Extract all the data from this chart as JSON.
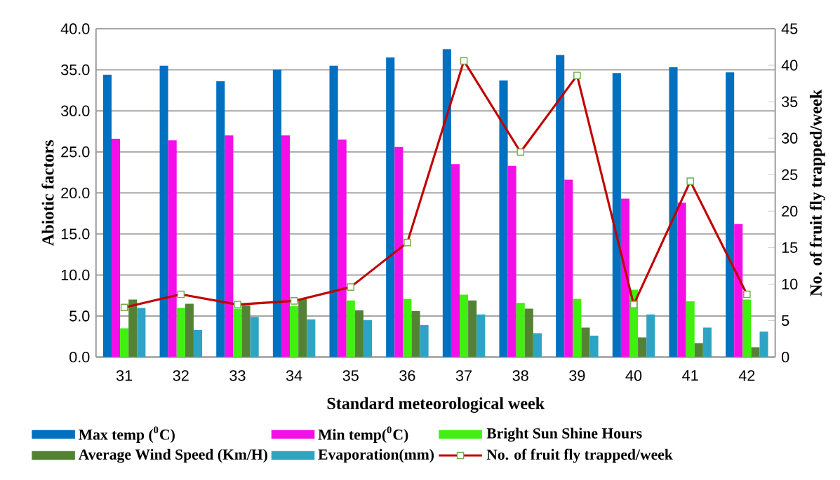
{
  "chart_data": {
    "type": "bar",
    "xlabel": "Standard meteorological week",
    "ylabel": "Abiotic factors",
    "y2label": "No. of fruit fly trapped/week",
    "categories": [
      "31",
      "32",
      "33",
      "34",
      "35",
      "36",
      "37",
      "38",
      "39",
      "40",
      "41",
      "42"
    ],
    "series": [
      {
        "name": "Max temp ($^{0}$C)",
        "color": "#0070c0",
        "values": [
          34.4,
          35.5,
          33.6,
          35.0,
          35.5,
          36.5,
          37.5,
          33.7,
          36.8,
          34.6,
          35.3,
          34.7
        ]
      },
      {
        "name": "Min temp($^{0}$C)",
        "color": "#f40fe8",
        "values": [
          26.6,
          26.4,
          27.0,
          27.0,
          26.5,
          25.6,
          23.5,
          23.3,
          21.6,
          19.3,
          18.8,
          16.2
        ]
      },
      {
        "name": "Bright Sun Shine Hours",
        "color": "#40f010",
        "values": [
          3.5,
          6.0,
          5.9,
          6.2,
          6.9,
          7.1,
          7.6,
          6.6,
          7.1,
          8.2,
          6.8,
          7.0
        ]
      },
      {
        "name": "Average Wind Speed (Km/H)",
        "color": "#548235",
        "values": [
          7.0,
          6.5,
          6.3,
          7.1,
          5.7,
          5.6,
          6.9,
          5.9,
          3.6,
          2.4,
          1.7,
          1.2
        ]
      },
      {
        "name": "Evaporation(mm)",
        "color": "#2ea4c4",
        "values": [
          6.0,
          3.3,
          4.9,
          4.6,
          4.5,
          3.9,
          5.2,
          2.9,
          2.6,
          5.2,
          3.6,
          3.1
        ]
      },
      {
        "name": "No. of fruit fly trapped/week",
        "color": "#c00000",
        "type": "line",
        "axis": "y2",
        "marker": "square",
        "line_style": "solid",
        "values": [
          6.8,
          8.6,
          7.2,
          7.7,
          9.6,
          15.7,
          40.6,
          28.1,
          38.6,
          7.2,
          24.1,
          8.6
        ]
      }
    ],
    "ylim": [
      0,
      40
    ],
    "yticks": [
      {
        "value": 0,
        "label": "0.0"
      },
      {
        "value": 5,
        "label": "5.0"
      },
      {
        "value": 10,
        "label": "10.0"
      },
      {
        "value": 15,
        "label": "15.0"
      },
      {
        "value": 20,
        "label": "20.0"
      },
      {
        "value": 25,
        "label": "25.0"
      },
      {
        "value": 30,
        "label": "30.0"
      },
      {
        "value": 35,
        "label": "35.0"
      },
      {
        "value": 40,
        "label": "40.0"
      }
    ],
    "y2lim": [
      0,
      45
    ],
    "y2ticks": [
      0,
      5,
      10,
      15,
      20,
      25,
      30,
      35,
      40,
      45
    ],
    "grid": "y",
    "legend": "bottom"
  }
}
